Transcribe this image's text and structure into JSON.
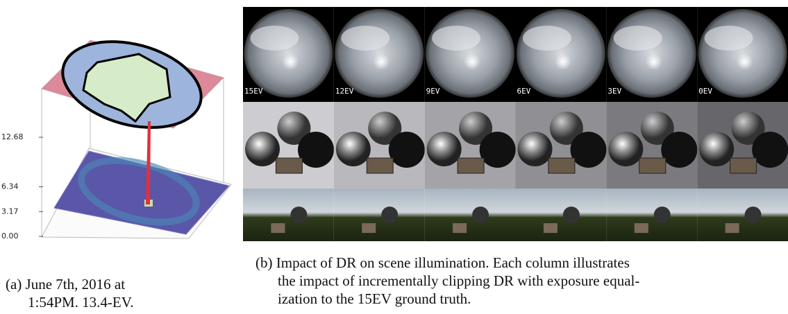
{
  "figure_a": {
    "zticks": [
      {
        "value": 0,
        "label": "0.00"
      },
      3.17,
      6.34,
      12.68
    ],
    "caption": [
      "(a) June 7th, 2016 at",
      "1:54PM. 13.4-EV."
    ]
  },
  "figure_b": {
    "columns": [
      "15EV",
      "12EV",
      "9EV",
      "6EV",
      "3EV",
      "0EV"
    ],
    "caption": [
      "(b) Impact of DR on scene illumination. Each column illustrates",
      "the impact of incrementally clipping DR with exposure equal-",
      "ization to the 15EV ground truth."
    ]
  }
}
